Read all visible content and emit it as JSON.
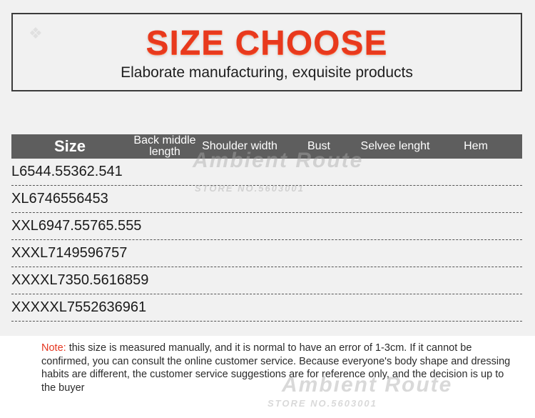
{
  "header": {
    "title": "SIZE CHOOSE",
    "subtitle": "Elaborate manufacturing, exquisite products"
  },
  "table": {
    "columns": [
      "Size",
      "Back middle length",
      "Shoulder width",
      "Bust",
      "Selvee lenght",
      "Hem"
    ],
    "rows": [
      [
        "L",
        "65",
        "44.5",
        "53",
        "62.5",
        "41"
      ],
      [
        "XL",
        "67",
        "46",
        "55",
        "64",
        "53"
      ],
      [
        "XXL",
        "69",
        "47.5",
        "57",
        "65.5",
        "55"
      ],
      [
        "XXXL",
        "71",
        "49",
        "59",
        "67",
        "57"
      ],
      [
        "XXXXL",
        "73",
        "50.5",
        "61",
        "68",
        "59"
      ],
      [
        "XXXXXL",
        "75",
        "52",
        "63",
        "69",
        "61"
      ]
    ]
  },
  "note": {
    "label": "Note:",
    "text": " this size is measured manually, and it is normal to have an error of 1-3cm. If it cannot be confirmed, you can consult the online customer service. Because everyone's body shape and dressing habits are different, the customer service suggestions are for reference only, and the decision is up to the buyer"
  },
  "watermark": {
    "brand": "Ambient Route",
    "store": "STORE NO.5603001"
  },
  "colors": {
    "title": "#e8391d",
    "header_bar": "#5e5e5e",
    "note_label": "#e5351f"
  }
}
